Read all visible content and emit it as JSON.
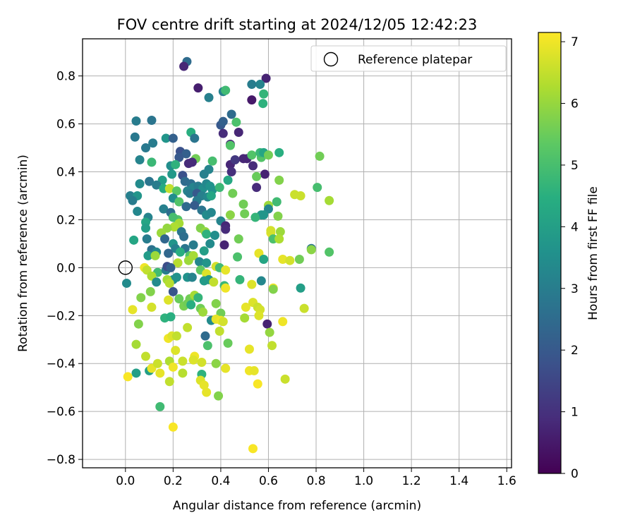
{
  "chart_data": {
    "type": "scatter",
    "title": "FOV centre drift starting at 2024/12/05 12:42:23",
    "xlabel": "Angular distance from reference (arcmin)",
    "ylabel": "Rotation from reference (arcmin)",
    "xlim": [
      -0.18,
      1.62
    ],
    "ylim": [
      -0.835,
      0.955
    ],
    "xticks": [
      "0.0",
      "0.2",
      "0.4",
      "0.6",
      "0.8",
      "1.0",
      "1.2",
      "1.4",
      "1.6"
    ],
    "yticks": [
      "0.8",
      "0.6",
      "0.4",
      "0.2",
      "0.0",
      "−0.2",
      "−0.4",
      "−0.6",
      "−0.8"
    ],
    "grid": true,
    "legend": {
      "placement": "top-right",
      "entries": [
        {
          "label": "Reference platepar",
          "marker": "open-circle"
        }
      ]
    },
    "reference_point": {
      "x": 0.0,
      "y": 0.0
    },
    "colorbar": {
      "label": "Hours from first FF file",
      "range": [
        0,
        7.15
      ],
      "ticks": [
        "0",
        "1",
        "2",
        "3",
        "4",
        "5",
        "6",
        "7"
      ],
      "colormap": "viridis"
    },
    "points": [
      [
        0.258,
        0.86,
        2.5
      ],
      [
        0.245,
        0.84,
        0.8
      ],
      [
        0.305,
        0.75,
        0.6
      ],
      [
        0.59,
        0.79,
        0.7
      ],
      [
        0.565,
        0.765,
        3.2
      ],
      [
        0.53,
        0.765,
        3.0
      ],
      [
        0.41,
        0.735,
        3.1
      ],
      [
        0.42,
        0.74,
        4.9
      ],
      [
        0.58,
        0.725,
        4.7
      ],
      [
        0.35,
        0.71,
        3.1
      ],
      [
        0.53,
        0.7,
        0.5
      ],
      [
        0.577,
        0.685,
        4.6
      ],
      [
        0.045,
        0.612,
        3.0
      ],
      [
        0.11,
        0.615,
        2.8
      ],
      [
        0.445,
        0.64,
        2.5
      ],
      [
        0.465,
        0.607,
        5.1
      ],
      [
        0.4,
        0.595,
        2.0
      ],
      [
        0.41,
        0.61,
        2.2
      ],
      [
        0.475,
        0.565,
        0.8
      ],
      [
        0.41,
        0.56,
        0.9
      ],
      [
        0.275,
        0.565,
        4.5
      ],
      [
        0.04,
        0.545,
        2.9
      ],
      [
        0.17,
        0.54,
        3.7
      ],
      [
        0.2,
        0.54,
        2.2
      ],
      [
        0.29,
        0.54,
        2.8
      ],
      [
        0.44,
        0.515,
        0.8
      ],
      [
        0.44,
        0.51,
        5.2
      ],
      [
        0.085,
        0.5,
        2.9
      ],
      [
        0.115,
        0.52,
        3.0
      ],
      [
        0.23,
        0.485,
        1.8
      ],
      [
        0.255,
        0.475,
        2.2
      ],
      [
        0.225,
        0.46,
        2.0
      ],
      [
        0.06,
        0.45,
        3.2
      ],
      [
        0.11,
        0.44,
        4.8
      ],
      [
        0.295,
        0.455,
        5.6
      ],
      [
        0.495,
        0.455,
        0.8
      ],
      [
        0.51,
        0.455,
        0.8
      ],
      [
        0.53,
        0.47,
        5.2
      ],
      [
        0.57,
        0.46,
        5.2
      ],
      [
        0.565,
        0.48,
        4.8
      ],
      [
        0.58,
        0.48,
        4.2
      ],
      [
        0.6,
        0.47,
        5.6
      ],
      [
        0.645,
        0.48,
        4.5
      ],
      [
        0.815,
        0.465,
        5.6
      ],
      [
        0.19,
        0.425,
        3.5
      ],
      [
        0.21,
        0.43,
        4.6
      ],
      [
        0.265,
        0.435,
        0.9
      ],
      [
        0.28,
        0.44,
        0.9
      ],
      [
        0.35,
        0.41,
        3.2
      ],
      [
        0.365,
        0.445,
        5.0
      ],
      [
        0.44,
        0.43,
        0.8
      ],
      [
        0.445,
        0.4,
        1.0
      ],
      [
        0.46,
        0.45,
        1.2
      ],
      [
        0.535,
        0.425,
        0.9
      ],
      [
        0.33,
        0.39,
        3.1
      ],
      [
        0.24,
        0.385,
        1.8
      ],
      [
        0.155,
        0.365,
        4.0
      ],
      [
        0.585,
        0.39,
        0.7
      ],
      [
        0.55,
        0.38,
        5.5
      ],
      [
        0.645,
        0.365,
        5.8
      ],
      [
        0.43,
        0.365,
        4.3
      ],
      [
        0.195,
        0.39,
        3.8
      ],
      [
        0.06,
        0.35,
        3.4
      ],
      [
        0.1,
        0.36,
        2.8
      ],
      [
        0.13,
        0.345,
        3.0
      ],
      [
        0.16,
        0.33,
        4.4
      ],
      [
        0.185,
        0.33,
        6.5
      ],
      [
        0.215,
        0.32,
        5.3
      ],
      [
        0.25,
        0.36,
        2.5
      ],
      [
        0.275,
        0.35,
        2.6
      ],
      [
        0.285,
        0.335,
        3.2
      ],
      [
        0.305,
        0.34,
        3.0
      ],
      [
        0.325,
        0.33,
        3.5
      ],
      [
        0.34,
        0.35,
        3.3
      ],
      [
        0.355,
        0.34,
        3.6
      ],
      [
        0.365,
        0.325,
        3.6
      ],
      [
        0.395,
        0.335,
        4.8
      ],
      [
        0.26,
        0.32,
        3.2
      ],
      [
        0.27,
        0.31,
        3.0
      ],
      [
        0.3,
        0.31,
        2.0
      ],
      [
        0.32,
        0.3,
        3.1
      ],
      [
        0.345,
        0.295,
        3.3
      ],
      [
        0.36,
        0.3,
        4.2
      ],
      [
        0.45,
        0.31,
        5.6
      ],
      [
        0.55,
        0.335,
        0.9
      ],
      [
        0.71,
        0.305,
        6.6
      ],
      [
        0.735,
        0.3,
        6.6
      ],
      [
        0.805,
        0.335,
        5.0
      ],
      [
        0.855,
        0.28,
        6.2
      ],
      [
        0.02,
        0.3,
        3.1
      ],
      [
        0.05,
        0.3,
        3.7
      ],
      [
        0.03,
        0.28,
        3.0
      ],
      [
        0.2,
        0.29,
        3.5
      ],
      [
        0.225,
        0.275,
        5.2
      ],
      [
        0.255,
        0.255,
        2.5
      ],
      [
        0.3,
        0.28,
        3.0
      ],
      [
        0.29,
        0.26,
        2.1
      ],
      [
        0.32,
        0.24,
        2.8
      ],
      [
        0.34,
        0.22,
        3.4
      ],
      [
        0.36,
        0.23,
        3.3
      ],
      [
        0.16,
        0.245,
        3.1
      ],
      [
        0.19,
        0.23,
        2.6
      ],
      [
        0.22,
        0.2,
        5.2
      ],
      [
        0.05,
        0.235,
        3.3
      ],
      [
        0.095,
        0.21,
        3.2
      ],
      [
        0.085,
        0.19,
        4.2
      ],
      [
        0.495,
        0.265,
        5.6
      ],
      [
        0.5,
        0.225,
        5.6
      ],
      [
        0.6,
        0.26,
        6.1
      ],
      [
        0.6,
        0.245,
        3.3
      ],
      [
        0.635,
        0.275,
        4.9
      ],
      [
        0.64,
        0.215,
        5.8
      ],
      [
        0.57,
        0.22,
        3.8
      ],
      [
        0.545,
        0.21,
        4.7
      ],
      [
        0.58,
        0.22,
        3.7
      ],
      [
        0.2,
        0.21,
        5.0
      ],
      [
        0.225,
        0.185,
        6.2
      ],
      [
        0.205,
        0.17,
        6.3
      ],
      [
        0.175,
        0.165,
        6.0
      ],
      [
        0.15,
        0.145,
        6.1
      ],
      [
        0.235,
        0.15,
        2.8
      ],
      [
        0.245,
        0.13,
        2.6
      ],
      [
        0.315,
        0.165,
        5.8
      ],
      [
        0.335,
        0.15,
        6.0
      ],
      [
        0.34,
        0.14,
        4.6
      ],
      [
        0.375,
        0.135,
        3.5
      ],
      [
        0.4,
        0.195,
        3.2
      ],
      [
        0.42,
        0.175,
        0.8
      ],
      [
        0.42,
        0.16,
        0.9
      ],
      [
        0.44,
        0.22,
        5.9
      ],
      [
        0.475,
        0.12,
        5.6
      ],
      [
        0.61,
        0.145,
        6.8
      ],
      [
        0.61,
        0.155,
        6.7
      ],
      [
        0.65,
        0.15,
        6.1
      ],
      [
        0.62,
        0.12,
        5.1
      ],
      [
        0.645,
        0.12,
        6.3
      ],
      [
        0.085,
        0.165,
        4.0
      ],
      [
        0.035,
        0.115,
        4.2
      ],
      [
        0.09,
        0.12,
        3.0
      ],
      [
        0.165,
        0.12,
        2.4
      ],
      [
        0.2,
        0.1,
        3.7
      ],
      [
        0.21,
        0.08,
        3.1
      ],
      [
        0.25,
        0.08,
        2.8
      ],
      [
        0.285,
        0.095,
        3.0
      ],
      [
        0.33,
        0.07,
        4.0
      ],
      [
        0.355,
        0.1,
        3.4
      ],
      [
        0.415,
        0.095,
        0.7
      ],
      [
        0.18,
        0.06,
        2.4
      ],
      [
        0.23,
        0.065,
        4.5
      ],
      [
        0.27,
        0.05,
        5.2
      ],
      [
        0.11,
        0.075,
        2.7
      ],
      [
        0.13,
        0.065,
        3.3
      ],
      [
        0.095,
        0.05,
        3.9
      ],
      [
        0.125,
        0.05,
        6.1
      ],
      [
        0.22,
        0.02,
        6.4
      ],
      [
        0.265,
        0.03,
        6.1
      ],
      [
        0.285,
        0.05,
        6.2
      ],
      [
        0.31,
        0.025,
        3.3
      ],
      [
        0.34,
        0.02,
        3.7
      ],
      [
        0.38,
        0.005,
        6.7
      ],
      [
        0.395,
        0.0,
        4.9
      ],
      [
        0.42,
        -0.01,
        6.9
      ],
      [
        0.47,
        0.045,
        5.1
      ],
      [
        0.56,
        0.06,
        6.9
      ],
      [
        0.58,
        0.035,
        4.2
      ],
      [
        0.66,
        0.035,
        6.9
      ],
      [
        0.69,
        0.03,
        6.7
      ],
      [
        0.73,
        0.035,
        5.6
      ],
      [
        0.78,
        0.08,
        2.8
      ],
      [
        0.78,
        0.075,
        5.9
      ],
      [
        0.855,
        0.065,
        5.2
      ],
      [
        0.08,
        0.0,
        7.0
      ],
      [
        0.09,
        -0.01,
        6.5
      ],
      [
        0.135,
        -0.02,
        4.9
      ],
      [
        0.17,
        -0.01,
        3.0
      ],
      [
        0.175,
        0.005,
        1.7
      ],
      [
        0.19,
        0.0,
        2.2
      ],
      [
        0.2,
        -0.05,
        3.5
      ],
      [
        0.215,
        -0.04,
        3.6
      ],
      [
        0.26,
        -0.04,
        3.6
      ],
      [
        0.28,
        -0.04,
        3.2
      ],
      [
        0.315,
        -0.01,
        5.4
      ],
      [
        0.34,
        -0.025,
        6.8
      ],
      [
        0.35,
        -0.05,
        3.7
      ],
      [
        0.33,
        -0.055,
        3.9
      ],
      [
        0.37,
        -0.06,
        6.5
      ],
      [
        0.415,
        -0.075,
        4.8
      ],
      [
        0.42,
        -0.085,
        7.0
      ],
      [
        0.48,
        -0.05,
        4.7
      ],
      [
        0.53,
        -0.07,
        6.8
      ],
      [
        0.57,
        -0.055,
        3.3
      ],
      [
        0.62,
        -0.085,
        7.0
      ],
      [
        0.62,
        -0.09,
        5.8
      ],
      [
        0.735,
        -0.085,
        4.0
      ],
      [
        0.11,
        -0.035,
        6.3
      ],
      [
        0.175,
        -0.05,
        6.2
      ],
      [
        0.185,
        -0.065,
        6.4
      ],
      [
        0.005,
        -0.065,
        3.4
      ],
      [
        0.13,
        -0.06,
        3.4
      ],
      [
        0.2,
        -0.1,
        1.9
      ],
      [
        0.105,
        -0.1,
        5.8
      ],
      [
        0.065,
        -0.125,
        5.8
      ],
      [
        0.03,
        -0.175,
        6.9
      ],
      [
        0.11,
        -0.165,
        6.7
      ],
      [
        0.18,
        -0.135,
        6.8
      ],
      [
        0.225,
        -0.13,
        5.5
      ],
      [
        0.27,
        -0.13,
        5.6
      ],
      [
        0.29,
        -0.115,
        6.2
      ],
      [
        0.305,
        -0.125,
        4.7
      ],
      [
        0.245,
        -0.16,
        5.7
      ],
      [
        0.26,
        -0.15,
        5.6
      ],
      [
        0.275,
        -0.155,
        4.5
      ],
      [
        0.315,
        -0.17,
        5.6
      ],
      [
        0.325,
        -0.185,
        6.1
      ],
      [
        0.38,
        -0.15,
        5.8
      ],
      [
        0.4,
        -0.19,
        5.6
      ],
      [
        0.505,
        -0.165,
        6.9
      ],
      [
        0.535,
        -0.145,
        6.8
      ],
      [
        0.555,
        -0.165,
        6.6
      ],
      [
        0.565,
        -0.175,
        6.7
      ],
      [
        0.75,
        -0.17,
        6.6
      ],
      [
        0.165,
        -0.21,
        4.6
      ],
      [
        0.19,
        -0.205,
        4.5
      ],
      [
        0.055,
        -0.235,
        5.8
      ],
      [
        0.26,
        -0.25,
        6.5
      ],
      [
        0.36,
        -0.22,
        3.4
      ],
      [
        0.38,
        -0.215,
        6.9
      ],
      [
        0.4,
        -0.22,
        7.0
      ],
      [
        0.41,
        -0.225,
        6.7
      ],
      [
        0.5,
        -0.21,
        6.2
      ],
      [
        0.56,
        -0.2,
        6.8
      ],
      [
        0.595,
        -0.235,
        0.7
      ],
      [
        0.605,
        -0.27,
        6.0
      ],
      [
        0.66,
        -0.225,
        7.0
      ],
      [
        0.395,
        -0.265,
        6.5
      ],
      [
        0.335,
        -0.285,
        2.5
      ],
      [
        0.18,
        -0.295,
        7.0
      ],
      [
        0.195,
        -0.285,
        6.8
      ],
      [
        0.215,
        -0.285,
        6.5
      ],
      [
        0.21,
        -0.345,
        6.8
      ],
      [
        0.045,
        -0.32,
        6.2
      ],
      [
        0.085,
        -0.37,
        6.5
      ],
      [
        0.185,
        -0.39,
        6.3
      ],
      [
        0.24,
        -0.39,
        6.6
      ],
      [
        0.29,
        -0.37,
        7.0
      ],
      [
        0.285,
        -0.385,
        6.8
      ],
      [
        0.32,
        -0.395,
        6.7
      ],
      [
        0.345,
        -0.325,
        5.1
      ],
      [
        0.38,
        -0.4,
        5.9
      ],
      [
        0.43,
        -0.315,
        5.5
      ],
      [
        0.52,
        -0.34,
        6.9
      ],
      [
        0.615,
        -0.325,
        6.5
      ],
      [
        0.1,
        -0.43,
        4.0
      ],
      [
        0.11,
        -0.42,
        6.9
      ],
      [
        0.135,
        -0.4,
        6.6
      ],
      [
        0.145,
        -0.44,
        6.9
      ],
      [
        0.185,
        -0.475,
        6.5
      ],
      [
        0.2,
        -0.415,
        7.0
      ],
      [
        0.24,
        -0.44,
        6.4
      ],
      [
        0.045,
        -0.44,
        4.0
      ],
      [
        0.01,
        -0.455,
        7.1
      ],
      [
        0.32,
        -0.445,
        4.6
      ],
      [
        0.315,
        -0.47,
        6.8
      ],
      [
        0.33,
        -0.49,
        6.9
      ],
      [
        0.34,
        -0.52,
        6.9
      ],
      [
        0.42,
        -0.42,
        6.9
      ],
      [
        0.52,
        -0.43,
        7.0
      ],
      [
        0.54,
        -0.43,
        6.9
      ],
      [
        0.555,
        -0.485,
        7.1
      ],
      [
        0.67,
        -0.465,
        6.6
      ],
      [
        0.39,
        -0.535,
        5.8
      ],
      [
        0.145,
        -0.58,
        4.9
      ],
      [
        0.2,
        -0.665,
        7.1
      ],
      [
        0.535,
        -0.755,
        7.1
      ]
    ]
  }
}
